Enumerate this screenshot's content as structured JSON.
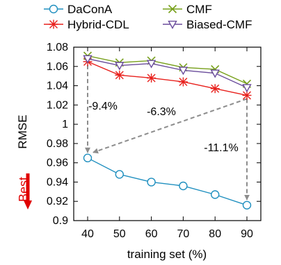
{
  "chart_data": {
    "type": "line",
    "x": [
      40,
      50,
      60,
      70,
      80,
      90
    ],
    "xlabel": "training set (%)",
    "ylabel": "RMSE",
    "ylim": [
      0.9,
      1.08
    ],
    "yticks": [
      "0.9",
      "0.92",
      "0.94",
      "0.96",
      "0.98",
      "1",
      "1.02",
      "1.04",
      "1.06",
      "1.08"
    ],
    "xticks": [
      "40",
      "50",
      "60",
      "70",
      "80",
      "90"
    ],
    "grid": false,
    "legend_position": "top",
    "series": [
      {
        "name": "DaConA",
        "color": "#1f8fbf",
        "marker": "circle",
        "values": [
          0.965,
          0.948,
          0.94,
          0.936,
          0.927,
          0.916
        ]
      },
      {
        "name": "Hybrid-CDL",
        "color": "#e8201c",
        "marker": "star",
        "values": [
          1.065,
          1.051,
          1.048,
          1.044,
          1.037,
          1.03
        ]
      },
      {
        "name": "CMF",
        "color": "#77a01a",
        "marker": "x",
        "values": [
          1.071,
          1.064,
          1.066,
          1.059,
          1.057,
          1.042
        ]
      },
      {
        "name": "Biased-CMF",
        "color": "#6a4c9c",
        "marker": "triangle-down",
        "values": [
          1.068,
          1.061,
          1.063,
          1.056,
          1.053,
          1.038
        ]
      }
    ],
    "annotations": [
      {
        "text": "-9.4%",
        "from": [
          40,
          1.065
        ],
        "to": [
          40,
          0.965
        ]
      },
      {
        "text": "-6.3%",
        "from": [
          90,
          1.03
        ],
        "to": [
          40,
          0.965
        ]
      },
      {
        "text": "-11.1%",
        "from": [
          90,
          1.03
        ],
        "to": [
          90,
          0.916
        ]
      }
    ],
    "best_label": "Best",
    "colors": {
      "annotation_arrow": "#8c8c8c",
      "best": "#e00000"
    }
  }
}
